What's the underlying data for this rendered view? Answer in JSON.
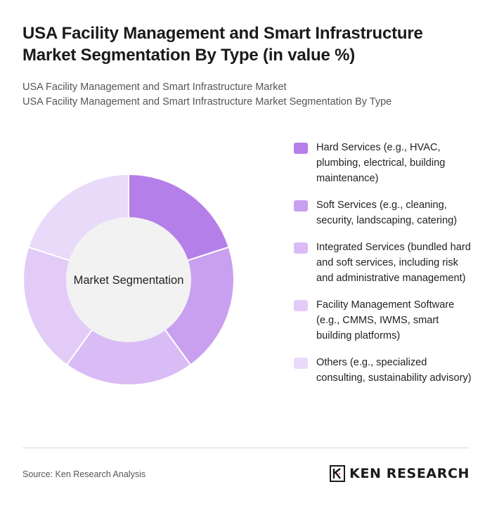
{
  "header": {
    "title": "USA Facility Management and Smart Infrastructure Market Segmentation By Type (in value %)",
    "subtitle_line1": "USA Facility Management and Smart Infrastructure Market",
    "subtitle_line2": "USA Facility Management and Smart Infrastructure Market Segmentation By Type"
  },
  "chart_data": {
    "type": "pie",
    "center_label": "Market Segmentation",
    "categories": [
      "Hard Services (e.g., HVAC, plumbing, electrical, building maintenance)",
      "Soft Services (e.g., cleaning, security, landscaping, catering)",
      "Integrated Services (bundled hard and soft services, including risk and administrative management)",
      "Facility Management Software (e.g., CMMS, IWMS, smart building platforms)",
      "Others (e.g., specialized consulting, sustainability advisory)"
    ],
    "values": [
      20,
      20,
      20,
      20,
      20
    ],
    "colors": [
      "#b57fe9",
      "#c99ff0",
      "#d9bcf5",
      "#e2ccf7",
      "#e9dafa"
    ],
    "legend_position": "right"
  },
  "footer": {
    "source": "Source: Ken Research Analysis",
    "brand": "KEN RESEARCH",
    "divider_color": "#d9d9d9"
  }
}
